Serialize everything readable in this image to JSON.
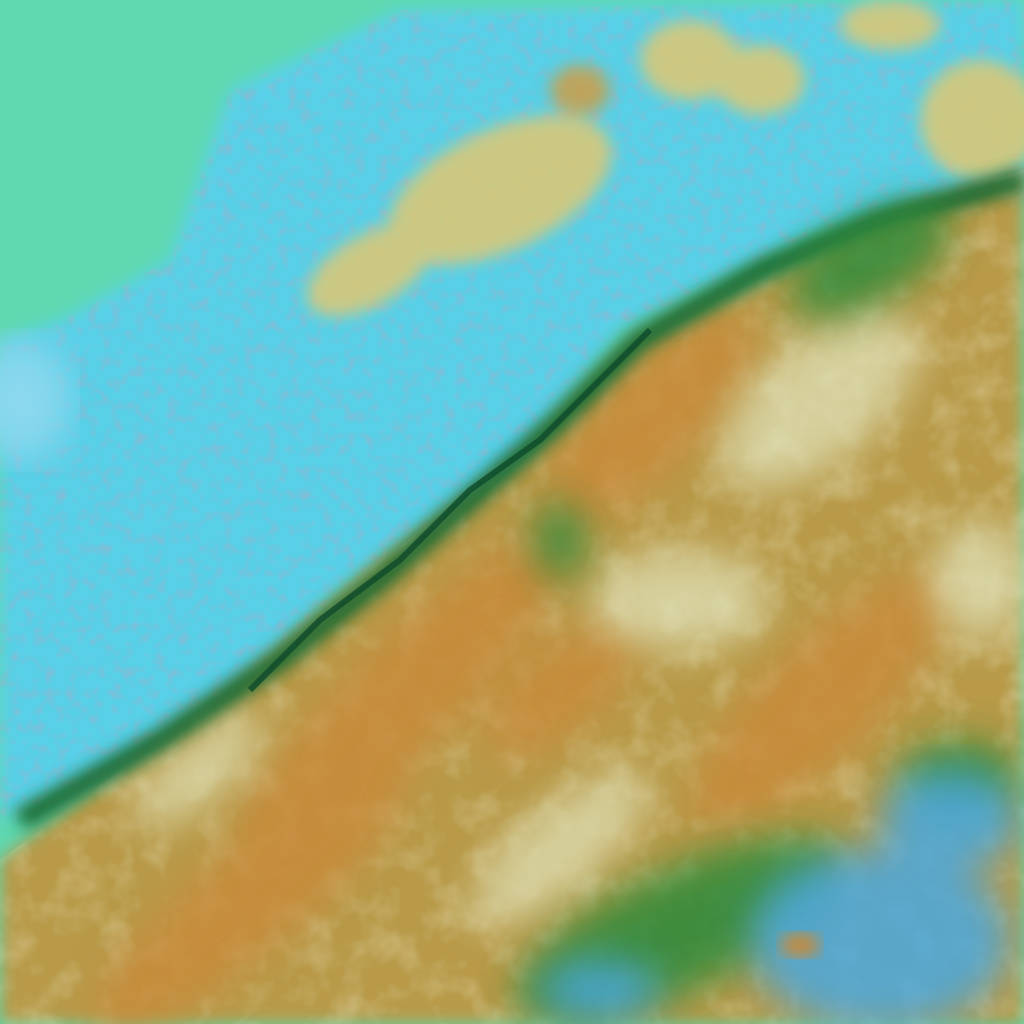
{
  "image": {
    "kind": "false-color satellite imagery",
    "palette": {
      "sea": "#5fd8b0",
      "cloud_cyan": "#58d0e8",
      "cloud_light": "#9ee6e8",
      "land_orange": "#c89040",
      "land_tan": "#d8c878",
      "vegetation_green": "#2a8a3a",
      "shadow_dark": "#0e4a2a",
      "snow_blue": "#4aa8e0"
    }
  }
}
